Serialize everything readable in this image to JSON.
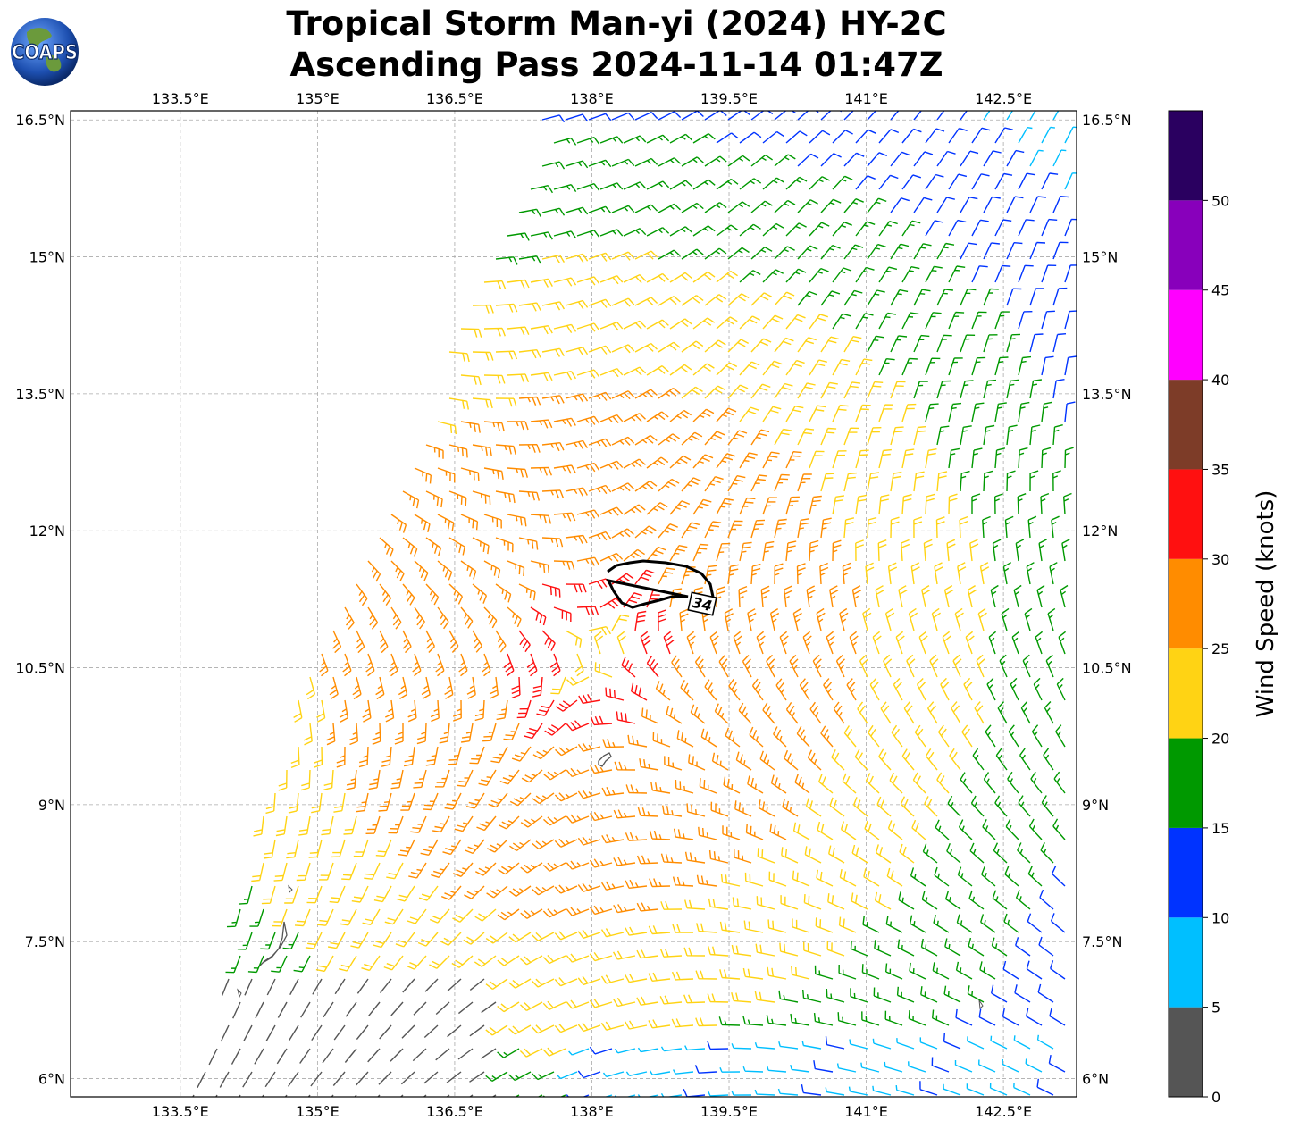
{
  "title": {
    "line1": "Tropical Storm Man-yi (2024) HY-2C",
    "line2": "Ascending Pass 2024-11-14 01:47Z"
  },
  "logo": {
    "text": "COAPS"
  },
  "map": {
    "lon_ticks": [
      "133.5°E",
      "135°E",
      "136.5°E",
      "138°E",
      "139.5°E",
      "141°E",
      "142.5°E"
    ],
    "lon_values": [
      133.5,
      135,
      136.5,
      138,
      139.5,
      141,
      142.5
    ],
    "lat_ticks": [
      "16.5°N",
      "15°N",
      "13.5°N",
      "12°N",
      "10.5°N",
      "9°N",
      "7.5°N",
      "6°N"
    ],
    "lat_values": [
      16.5,
      15,
      13.5,
      12,
      10.5,
      9,
      7.5,
      6
    ],
    "lon_range": [
      132.3,
      143.3
    ],
    "lat_range": [
      5.8,
      16.6
    ],
    "storm_center": {
      "lon": 138.0,
      "lat": 10.65
    },
    "contour_label": "34",
    "contour_color": "#000000",
    "land_color": "#555555"
  },
  "colorbar": {
    "label": "Wind Speed (knots)",
    "tick_labels": [
      "0",
      "5",
      "10",
      "15",
      "20",
      "25",
      "30",
      "35",
      "40",
      "45",
      "50"
    ],
    "tick_values": [
      0,
      5,
      10,
      15,
      20,
      25,
      30,
      35,
      40,
      45,
      50
    ],
    "range": [
      0,
      55
    ],
    "bins": [
      {
        "min": 0,
        "max": 5,
        "color": "#555555"
      },
      {
        "min": 5,
        "max": 10,
        "color": "#00bfff"
      },
      {
        "min": 10,
        "max": 15,
        "color": "#0033ff"
      },
      {
        "min": 15,
        "max": 20,
        "color": "#009900"
      },
      {
        "min": 20,
        "max": 25,
        "color": "#ffd314"
      },
      {
        "min": 25,
        "max": 30,
        "color": "#ff8c00"
      },
      {
        "min": 30,
        "max": 35,
        "color": "#ff1010"
      },
      {
        "min": 35,
        "max": 40,
        "color": "#7d3c28"
      },
      {
        "min": 40,
        "max": 45,
        "color": "#ff00ff"
      },
      {
        "min": 45,
        "max": 50,
        "color": "#8800bb"
      },
      {
        "min": 50,
        "max": 55,
        "color": "#2a0060"
      }
    ]
  }
}
